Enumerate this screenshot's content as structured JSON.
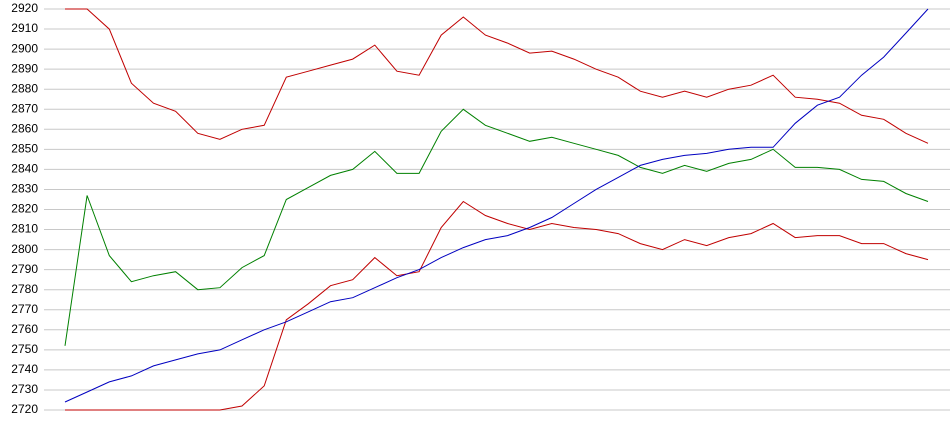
{
  "chart_data": {
    "type": "line",
    "categories": [
      null,
      null,
      null,
      null,
      null,
      null,
      null,
      null,
      null,
      null,
      null,
      null,
      null,
      null,
      null,
      null,
      null,
      null,
      null,
      null,
      null,
      null,
      null,
      null,
      null,
      null,
      null,
      null,
      null,
      null,
      null,
      null,
      null,
      null,
      null,
      null,
      null,
      null,
      null,
      null
    ],
    "series": [
      {
        "color": "#c00000",
        "values": [
          2920,
          2920,
          2910,
          2883,
          2873,
          2869,
          2858,
          2855,
          2860,
          2862,
          2886,
          2889,
          2892,
          2895,
          2902,
          2889,
          2887,
          2907,
          2916,
          2907,
          2903,
          2898,
          2899,
          2895,
          2890,
          2886,
          2879,
          2876,
          2879,
          2876,
          2880,
          2882,
          2887,
          2876,
          2875,
          2873,
          2867,
          2865,
          2858,
          2853
        ]
      },
      {
        "color": "#008000",
        "values": [
          2752,
          2827,
          2797,
          2784,
          2787,
          2789,
          2780,
          2781,
          2791,
          2797,
          2825,
          2831,
          2837,
          2840,
          2849,
          2838,
          2838,
          2859,
          2870,
          2862,
          2858,
          2854,
          2856,
          2853,
          2850,
          2847,
          2841,
          2838,
          2842,
          2839,
          2843,
          2845,
          2850,
          2841,
          2841,
          2840,
          2835,
          2834,
          2828,
          2824
        ]
      },
      {
        "color": "#c00000",
        "values": [
          2720,
          2720,
          2720,
          2720,
          2720,
          2720,
          2720,
          2720,
          2722,
          2732,
          2765,
          2773,
          2782,
          2785,
          2796,
          2787,
          2789,
          2811,
          2824,
          2817,
          2813,
          2810,
          2813,
          2811,
          2810,
          2808,
          2803,
          2800,
          2805,
          2802,
          2806,
          2808,
          2813,
          2806,
          2807,
          2807,
          2803,
          2803,
          2798,
          2795
        ]
      },
      {
        "color": "#0000c0",
        "values": [
          2724,
          2729,
          2734,
          2737,
          2742,
          2745,
          2748,
          2750,
          2755,
          2760,
          2764,
          2769,
          2774,
          2776,
          2781,
          2786,
          2790,
          2796,
          2801,
          2805,
          2807,
          2811,
          2816,
          2823,
          2830,
          2836,
          2842,
          2845,
          2847,
          2848,
          2850,
          2851,
          2851,
          2863,
          2872,
          2876,
          2887,
          2896,
          2908,
          2920
        ]
      }
    ],
    "ylim": [
      2720,
      2920
    ],
    "yticks": [
      2720,
      2730,
      2740,
      2750,
      2760,
      2770,
      2780,
      2790,
      2800,
      2810,
      2820,
      2830,
      2840,
      2850,
      2860,
      2870,
      2880,
      2890,
      2900,
      2910,
      2920
    ],
    "grid": true
  }
}
